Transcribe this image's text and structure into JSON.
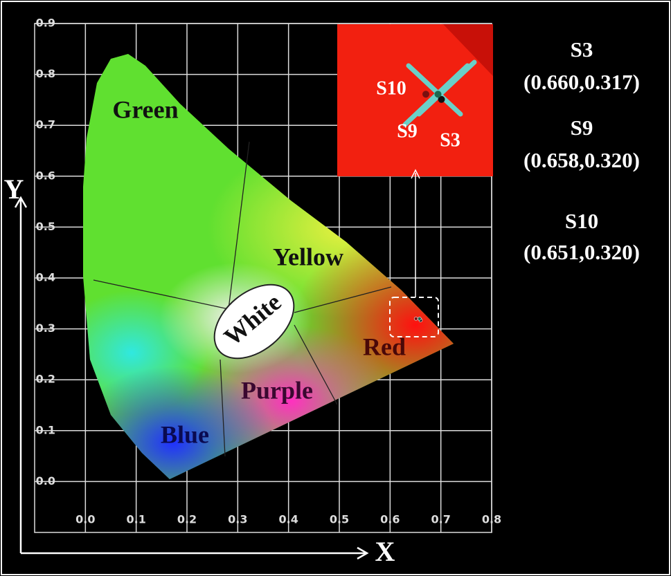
{
  "chart_data": {
    "type": "scatter",
    "x_label": "X",
    "y_label": "Y",
    "xlim": [
      -0.1,
      0.8
    ],
    "ylim": [
      -0.1,
      0.9
    ],
    "xticks": [
      {
        "value": 0,
        "label": "0.0"
      },
      0.1,
      0.2,
      0.3,
      0.4,
      0.5,
      0.6,
      0.7,
      0.8
    ],
    "yticks": [
      {
        "value": 0,
        "label": "0.0"
      },
      0.1,
      0.2,
      0.3,
      0.4,
      0.5,
      0.6,
      0.7,
      0.8,
      0.9
    ],
    "grid": true,
    "annotations": [
      "Green",
      "Yellow",
      "White",
      "Red",
      "Purple",
      "Blue"
    ],
    "series": [
      {
        "name": "S3",
        "color": "#111111",
        "x": [
          0.66
        ],
        "values": [
          0.317
        ],
        "value_labels": [
          "(0.660,0.317)"
        ]
      },
      {
        "name": "S9",
        "color": "#1a6a50",
        "x": [
          0.658
        ],
        "values": [
          0.32
        ],
        "value_labels": [
          "(0.658,0.320)"
        ]
      },
      {
        "name": "S10",
        "color": "#7a1010",
        "x": [
          0.651
        ],
        "values": [
          0.32
        ],
        "value_labels": [
          "(0.651,0.320)"
        ]
      }
    ]
  }
}
